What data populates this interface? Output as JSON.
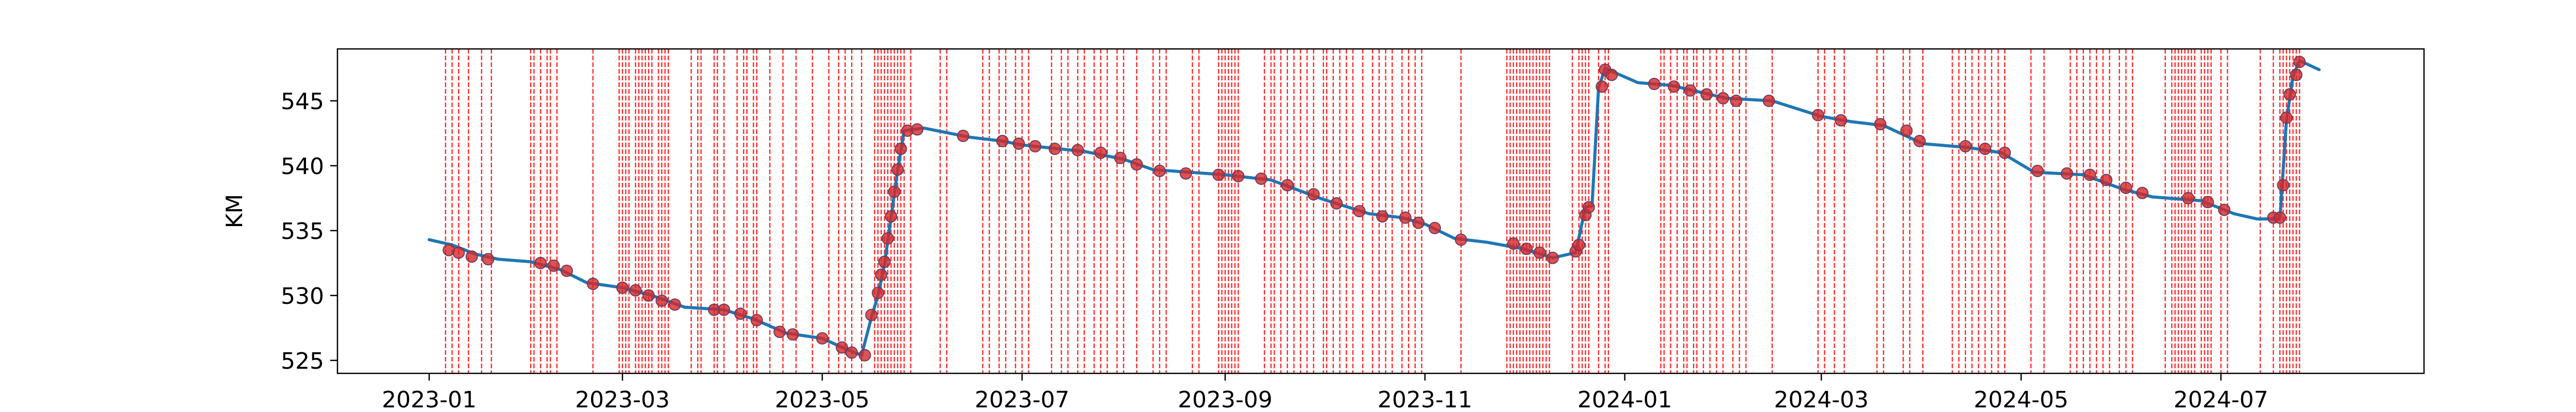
{
  "chart_data": {
    "type": "line",
    "ylabel": "KM",
    "xlabel": "",
    "x_range": [
      "2022-12-04",
      "2024-09-01"
    ],
    "ylim": [
      524,
      549
    ],
    "yticks": [
      525,
      530,
      535,
      540,
      545
    ],
    "xticks": [
      "2023-01",
      "2023-03",
      "2023-05",
      "2023-07",
      "2023-09",
      "2023-11",
      "2024-01",
      "2024-03",
      "2024-05",
      "2024-07"
    ],
    "grid": false,
    "line_color": "#1f77b4",
    "marker_color": "#d62728",
    "vline_color": "#ff0000",
    "series": [
      {
        "values": [
          [
            "2023-01-01",
            534.3
          ],
          [
            "2023-01-08",
            533.9
          ],
          [
            "2023-01-15",
            533.2
          ],
          [
            "2023-01-22",
            532.8
          ],
          [
            "2023-02-01",
            532.6
          ],
          [
            "2023-02-10",
            532.0
          ],
          [
            "2023-02-18",
            531.0
          ],
          [
            "2023-03-01",
            530.6
          ],
          [
            "2023-03-10",
            530.0
          ],
          [
            "2023-03-20",
            529.1
          ],
          [
            "2023-04-01",
            528.9
          ],
          [
            "2023-04-10",
            528.2
          ],
          [
            "2023-04-20",
            527.1
          ],
          [
            "2023-05-01",
            526.7
          ],
          [
            "2023-05-08",
            525.9
          ],
          [
            "2023-05-13",
            525.4
          ],
          [
            "2023-05-16",
            528.3
          ],
          [
            "2023-05-18",
            530.0
          ],
          [
            "2023-05-20",
            532.4
          ],
          [
            "2023-05-22",
            536.0
          ],
          [
            "2023-05-24",
            539.6
          ],
          [
            "2023-05-26",
            542.7
          ],
          [
            "2023-06-01",
            542.9
          ],
          [
            "2023-06-15",
            542.2
          ],
          [
            "2023-06-25",
            541.9
          ],
          [
            "2023-07-01",
            541.6
          ],
          [
            "2023-07-20",
            541.1
          ],
          [
            "2023-08-01",
            540.5
          ],
          [
            "2023-08-10",
            539.7
          ],
          [
            "2023-09-01",
            539.3
          ],
          [
            "2023-09-15",
            538.9
          ],
          [
            "2023-10-01",
            537.4
          ],
          [
            "2023-10-15",
            536.3
          ],
          [
            "2023-10-25",
            536.0
          ],
          [
            "2023-11-01",
            535.5
          ],
          [
            "2023-11-10",
            534.4
          ],
          [
            "2023-11-20",
            534.1
          ],
          [
            "2023-12-01",
            533.6
          ],
          [
            "2023-12-10",
            532.9
          ],
          [
            "2023-12-17",
            533.3
          ],
          [
            "2023-12-20",
            536.8
          ],
          [
            "2023-12-22",
            536.9
          ],
          [
            "2023-12-24",
            546.0
          ],
          [
            "2023-12-26",
            547.5
          ],
          [
            "2024-01-05",
            546.4
          ],
          [
            "2024-01-15",
            546.2
          ],
          [
            "2024-02-01",
            545.2
          ],
          [
            "2024-02-15",
            545.0
          ],
          [
            "2024-03-01",
            543.8
          ],
          [
            "2024-03-10",
            543.4
          ],
          [
            "2024-03-20",
            543.1
          ],
          [
            "2024-04-01",
            541.7
          ],
          [
            "2024-04-15",
            541.4
          ],
          [
            "2024-04-25",
            541.0
          ],
          [
            "2024-05-05",
            539.5
          ],
          [
            "2024-05-20",
            539.3
          ],
          [
            "2024-06-01",
            538.2
          ],
          [
            "2024-06-10",
            537.6
          ],
          [
            "2024-06-25",
            537.3
          ],
          [
            "2024-07-05",
            536.3
          ],
          [
            "2024-07-12",
            535.9
          ],
          [
            "2024-07-19",
            535.9
          ],
          [
            "2024-07-21",
            543.5
          ],
          [
            "2024-07-23",
            546.9
          ],
          [
            "2024-07-25",
            548.1
          ],
          [
            "2024-07-31",
            547.4
          ]
        ]
      }
    ],
    "markers": [
      [
        "2023-01-07",
        533.5
      ],
      [
        "2023-01-10",
        533.3
      ],
      [
        "2023-01-14",
        533.0
      ],
      [
        "2023-01-19",
        532.8
      ],
      [
        "2023-02-04",
        532.5
      ],
      [
        "2023-02-08",
        532.3
      ],
      [
        "2023-02-12",
        531.9
      ],
      [
        "2023-02-20",
        530.9
      ],
      [
        "2023-03-01",
        530.6
      ],
      [
        "2023-03-05",
        530.4
      ],
      [
        "2023-03-09",
        530.0
      ],
      [
        "2023-03-13",
        529.6
      ],
      [
        "2023-03-17",
        529.3
      ],
      [
        "2023-03-29",
        528.9
      ],
      [
        "2023-04-01",
        528.9
      ],
      [
        "2023-04-06",
        528.6
      ],
      [
        "2023-04-11",
        528.1
      ],
      [
        "2023-04-18",
        527.2
      ],
      [
        "2023-04-22",
        527.0
      ],
      [
        "2023-05-01",
        526.7
      ],
      [
        "2023-05-07",
        526.0
      ],
      [
        "2023-05-10",
        525.6
      ],
      [
        "2023-05-14",
        525.4
      ],
      [
        "2023-05-16",
        528.5
      ],
      [
        "2023-05-18",
        530.2
      ],
      [
        "2023-05-19",
        531.6
      ],
      [
        "2023-05-20",
        532.6
      ],
      [
        "2023-05-21",
        534.4
      ],
      [
        "2023-05-22",
        536.1
      ],
      [
        "2023-05-23",
        538.0
      ],
      [
        "2023-05-24",
        539.7
      ],
      [
        "2023-05-25",
        541.3
      ],
      [
        "2023-05-27",
        542.7
      ],
      [
        "2023-05-30",
        542.8
      ],
      [
        "2023-06-13",
        542.3
      ],
      [
        "2023-06-25",
        541.9
      ],
      [
        "2023-06-30",
        541.7
      ],
      [
        "2023-07-05",
        541.5
      ],
      [
        "2023-07-11",
        541.3
      ],
      [
        "2023-07-18",
        541.2
      ],
      [
        "2023-07-25",
        541.0
      ],
      [
        "2023-07-31",
        540.6
      ],
      [
        "2023-08-05",
        540.1
      ],
      [
        "2023-08-12",
        539.6
      ],
      [
        "2023-08-20",
        539.4
      ],
      [
        "2023-08-30",
        539.3
      ],
      [
        "2023-09-05",
        539.2
      ],
      [
        "2023-09-12",
        539.0
      ],
      [
        "2023-09-20",
        538.5
      ],
      [
        "2023-09-28",
        537.8
      ],
      [
        "2023-10-05",
        537.1
      ],
      [
        "2023-10-12",
        536.5
      ],
      [
        "2023-10-19",
        536.1
      ],
      [
        "2023-10-26",
        536.0
      ],
      [
        "2023-10-30",
        535.6
      ],
      [
        "2023-11-04",
        535.2
      ],
      [
        "2023-11-12",
        534.3
      ],
      [
        "2023-11-28",
        534.0
      ],
      [
        "2023-12-02",
        533.6
      ],
      [
        "2023-12-06",
        533.3
      ],
      [
        "2023-12-10",
        532.9
      ],
      [
        "2023-12-17",
        533.4
      ],
      [
        "2023-12-18",
        533.9
      ],
      [
        "2023-12-20",
        536.2
      ],
      [
        "2023-12-21",
        536.8
      ],
      [
        "2023-12-25",
        546.1
      ],
      [
        "2023-12-26",
        547.4
      ],
      [
        "2023-12-28",
        547.0
      ],
      [
        "2024-01-10",
        546.3
      ],
      [
        "2024-01-16",
        546.1
      ],
      [
        "2024-01-21",
        545.8
      ],
      [
        "2024-01-26",
        545.5
      ],
      [
        "2024-01-31",
        545.2
      ],
      [
        "2024-02-04",
        545.0
      ],
      [
        "2024-02-14",
        545.0
      ],
      [
        "2024-02-29",
        543.9
      ],
      [
        "2024-03-07",
        543.5
      ],
      [
        "2024-03-19",
        543.2
      ],
      [
        "2024-03-27",
        542.7
      ],
      [
        "2024-03-31",
        541.9
      ],
      [
        "2024-04-14",
        541.5
      ],
      [
        "2024-04-20",
        541.3
      ],
      [
        "2024-04-26",
        541.0
      ],
      [
        "2024-05-06",
        539.6
      ],
      [
        "2024-05-15",
        539.4
      ],
      [
        "2024-05-22",
        539.3
      ],
      [
        "2024-05-27",
        538.9
      ],
      [
        "2024-06-02",
        538.3
      ],
      [
        "2024-06-07",
        537.9
      ],
      [
        "2024-06-21",
        537.5
      ],
      [
        "2024-06-27",
        537.2
      ],
      [
        "2024-07-02",
        536.6
      ],
      [
        "2024-07-17",
        536.0
      ],
      [
        "2024-07-19",
        536.0
      ],
      [
        "2024-07-20",
        538.5
      ],
      [
        "2024-07-21",
        543.7
      ],
      [
        "2024-07-22",
        545.5
      ],
      [
        "2024-07-24",
        547.0
      ],
      [
        "2024-07-25",
        548.0
      ]
    ],
    "event_lines": [
      "2023-01-06",
      "2023-01-08",
      "2023-01-10",
      "2023-01-13",
      "2023-01-17",
      "2023-01-20",
      "2023-02-01",
      "2023-02-02",
      "2023-02-04",
      "2023-02-06",
      "2023-02-07",
      "2023-02-09",
      "2023-02-20",
      "2023-02-28",
      "2023-03-01",
      "2023-03-02",
      "2023-03-03",
      "2023-03-05",
      "2023-03-06",
      "2023-03-07",
      "2023-03-08",
      "2023-03-09",
      "2023-03-10",
      "2023-03-12",
      "2023-03-13",
      "2023-03-14",
      "2023-03-15",
      "2023-03-22",
      "2023-03-24",
      "2023-03-25",
      "2023-03-29",
      "2023-03-30",
      "2023-04-01",
      "2023-04-05",
      "2023-04-07",
      "2023-04-08",
      "2023-04-10",
      "2023-04-11",
      "2023-04-15",
      "2023-04-19",
      "2023-04-23",
      "2023-04-28",
      "2023-05-03",
      "2023-05-06",
      "2023-05-08",
      "2023-05-10",
      "2023-05-13",
      "2023-05-17",
      "2023-05-18",
      "2023-05-19",
      "2023-05-20",
      "2023-05-21",
      "2023-05-22",
      "2023-05-23",
      "2023-05-24",
      "2023-05-25",
      "2023-05-26",
      "2023-05-28",
      "2023-06-06",
      "2023-06-08",
      "2023-06-19",
      "2023-06-21",
      "2023-06-24",
      "2023-06-26",
      "2023-06-29",
      "2023-07-01",
      "2023-07-03",
      "2023-07-10",
      "2023-07-13",
      "2023-07-15",
      "2023-07-18",
      "2023-07-20",
      "2023-07-23",
      "2023-07-25",
      "2023-07-27",
      "2023-07-30",
      "2023-08-01",
      "2023-08-05",
      "2023-08-10",
      "2023-08-12",
      "2023-08-14",
      "2023-08-22",
      "2023-08-24",
      "2023-08-30",
      "2023-08-31",
      "2023-09-01",
      "2023-09-02",
      "2023-09-03",
      "2023-09-04",
      "2023-09-05",
      "2023-09-13",
      "2023-09-15",
      "2023-09-16",
      "2023-09-18",
      "2023-09-20",
      "2023-09-22",
      "2023-09-24",
      "2023-09-26",
      "2023-09-28",
      "2023-10-01",
      "2023-10-02",
      "2023-10-04",
      "2023-10-06",
      "2023-10-08",
      "2023-10-10",
      "2023-10-13",
      "2023-10-16",
      "2023-10-18",
      "2023-10-20",
      "2023-10-22",
      "2023-10-25",
      "2023-10-27",
      "2023-10-29",
      "2023-10-31",
      "2023-11-12",
      "2023-11-26",
      "2023-11-27",
      "2023-11-28",
      "2023-11-29",
      "2023-11-30",
      "2023-12-01",
      "2023-12-02",
      "2023-12-03",
      "2023-12-04",
      "2023-12-05",
      "2023-12-06",
      "2023-12-07",
      "2023-12-08",
      "2023-12-09",
      "2023-12-16",
      "2023-12-18",
      "2023-12-19",
      "2023-12-20",
      "2023-12-21",
      "2023-12-24",
      "2023-12-26",
      "2023-12-27",
      "2024-01-12",
      "2024-01-13",
      "2024-01-15",
      "2024-01-17",
      "2024-01-19",
      "2024-01-20",
      "2024-01-22",
      "2024-01-23",
      "2024-01-25",
      "2024-01-27",
      "2024-01-29",
      "2024-01-31",
      "2024-02-03",
      "2024-02-05",
      "2024-02-07",
      "2024-02-15",
      "2024-02-29",
      "2024-03-02",
      "2024-03-05",
      "2024-03-08",
      "2024-03-18",
      "2024-03-20",
      "2024-03-26",
      "2024-03-28",
      "2024-04-01",
      "2024-04-10",
      "2024-04-12",
      "2024-04-14",
      "2024-04-16",
      "2024-04-18",
      "2024-04-20",
      "2024-04-22",
      "2024-04-24",
      "2024-04-26",
      "2024-05-04",
      "2024-05-08",
      "2024-05-16",
      "2024-05-18",
      "2024-05-20",
      "2024-05-22",
      "2024-05-24",
      "2024-05-26",
      "2024-05-28",
      "2024-05-31",
      "2024-06-02",
      "2024-06-04",
      "2024-06-14",
      "2024-06-16",
      "2024-06-17",
      "2024-06-18",
      "2024-06-19",
      "2024-06-20",
      "2024-06-21",
      "2024-06-22",
      "2024-06-23",
      "2024-06-25",
      "2024-06-26",
      "2024-06-27",
      "2024-06-28",
      "2024-07-01",
      "2024-07-03",
      "2024-07-13",
      "2024-07-17",
      "2024-07-19",
      "2024-07-20",
      "2024-07-21",
      "2024-07-22",
      "2024-07-23",
      "2024-07-24",
      "2024-07-25"
    ]
  }
}
